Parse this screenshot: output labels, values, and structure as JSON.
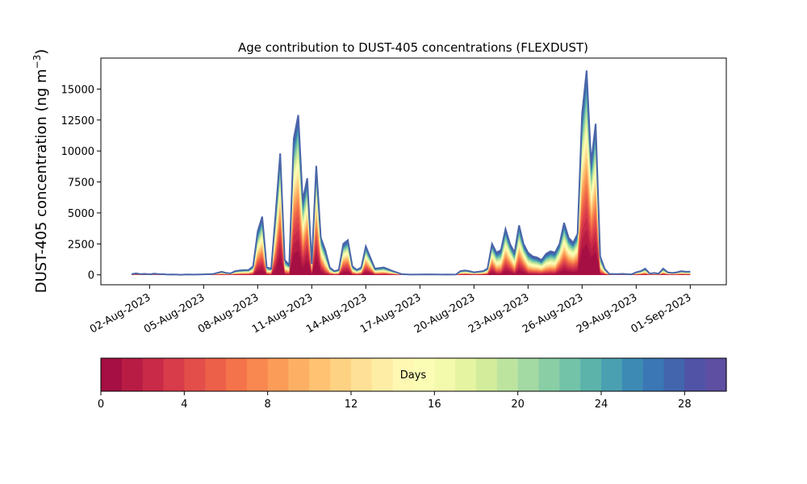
{
  "chart_data": {
    "type": "area",
    "title": "Age contribution to DUST-405 concentrations (FLEXDUST)",
    "ylabel": "DUST-405 concentration (ng m",
    "ylabel_sup": "−3",
    "ylabel_end": ")",
    "xlabel": "",
    "ylim": [
      -800,
      17500
    ],
    "y_ticks": [
      0,
      2500,
      5000,
      7500,
      10000,
      12500,
      15000
    ],
    "y_tick_labels": [
      "0",
      "2500",
      "5000",
      "7500",
      "10000",
      "12500",
      "15000"
    ],
    "x_range_days": [
      -1.7,
      33
    ],
    "x_ticks_day": [
      1,
      4,
      7,
      10,
      13,
      16,
      19,
      22,
      25,
      28,
      31
    ],
    "x_tick_labels": [
      "02-Aug-2023",
      "05-Aug-2023",
      "08-Aug-2023",
      "11-Aug-2023",
      "14-Aug-2023",
      "17-Aug-2023",
      "20-Aug-2023",
      "23-Aug-2023",
      "26-Aug-2023",
      "29-Aug-2023",
      "01-Sep-2023"
    ],
    "x_axis_origin": "01-Aug-2023",
    "grid": false,
    "colorbar": {
      "label": "Days",
      "min": 0,
      "max": 30,
      "bins": 30,
      "ticks": [
        0,
        4,
        8,
        12,
        16,
        20,
        24,
        28
      ],
      "tick_labels": [
        "0",
        "4",
        "8",
        "12",
        "16",
        "20",
        "24",
        "28"
      ],
      "colors": [
        "#a50f43",
        "#b81c45",
        "#c92a48",
        "#d83b4a",
        "#e34d4a",
        "#ec5f49",
        "#f4734a",
        "#f8884f",
        "#fb9c58",
        "#fdb064",
        "#fec272",
        "#fed283",
        "#fee196",
        "#feeda4",
        "#fff8b3",
        "#fbfdb5",
        "#f3faac",
        "#e4f4a0",
        "#d2ec9c",
        "#bce49f",
        "#a3d9a3",
        "#89cea5",
        "#72c3a8",
        "#5cb3aa",
        "#4aa0b0",
        "#3d8bb5",
        "#3a77b4",
        "#4365ad",
        "#5153a6",
        "#5e4fa2"
      ]
    },
    "total_series": {
      "name": "total",
      "x": [
        0.0,
        0.25,
        0.5,
        0.75,
        1.0,
        1.25,
        1.5,
        1.75,
        2.0,
        2.25,
        2.5,
        2.75,
        3.0,
        3.5,
        4.0,
        4.5,
        5.0,
        5.25,
        5.5,
        5.75,
        6.0,
        6.25,
        6.5,
        6.75,
        7.0,
        7.25,
        7.5,
        7.75,
        8.0,
        8.25,
        8.5,
        8.75,
        9.0,
        9.25,
        9.5,
        9.75,
        10.0,
        10.25,
        10.5,
        10.75,
        11.0,
        11.25,
        11.5,
        11.75,
        12.0,
        12.25,
        12.5,
        12.75,
        13.0,
        13.5,
        14.0,
        14.5,
        15.0,
        15.5,
        16.0,
        16.5,
        17.0,
        17.25,
        17.5,
        17.75,
        18.0,
        18.25,
        18.5,
        18.75,
        19.0,
        19.25,
        19.5,
        19.75,
        20.0,
        20.25,
        20.5,
        20.75,
        21.0,
        21.25,
        21.5,
        21.75,
        22.0,
        22.25,
        22.5,
        22.75,
        23.0,
        23.25,
        23.5,
        23.75,
        24.0,
        24.25,
        24.5,
        24.75,
        25.0,
        25.25,
        25.5,
        25.75,
        26.0,
        26.25,
        26.5,
        26.75,
        27.0,
        27.25,
        27.5,
        27.75,
        28.0,
        28.25,
        28.5,
        28.75,
        29.0,
        29.25,
        29.5,
        29.75,
        30.0,
        30.25,
        30.5,
        30.75,
        31.0
      ],
      "values": [
        50,
        120,
        60,
        80,
        40,
        90,
        60,
        50,
        20,
        30,
        20,
        10,
        30,
        20,
        40,
        60,
        250,
        150,
        120,
        300,
        350,
        380,
        400,
        700,
        3500,
        4700,
        600,
        500,
        5000,
        9800,
        1200,
        800,
        11000,
        12900,
        6000,
        7800,
        900,
        8800,
        3000,
        2000,
        600,
        300,
        400,
        2500,
        2800,
        700,
        400,
        600,
        2300,
        500,
        600,
        300,
        50,
        20,
        30,
        40,
        30,
        20,
        30,
        20,
        30,
        300,
        350,
        300,
        200,
        250,
        300,
        500,
        2500,
        1800,
        2000,
        3700,
        2500,
        1800,
        4000,
        2500,
        1800,
        1500,
        1400,
        1200,
        1700,
        1900,
        1800,
        2500,
        4200,
        3000,
        2600,
        3300,
        13000,
        16500,
        9000,
        12200,
        1500,
        500,
        80,
        60,
        60,
        80,
        50,
        40,
        200,
        300,
        500,
        100,
        150,
        100,
        500,
        200,
        150,
        200,
        300,
        250,
        260
      ]
    }
  }
}
